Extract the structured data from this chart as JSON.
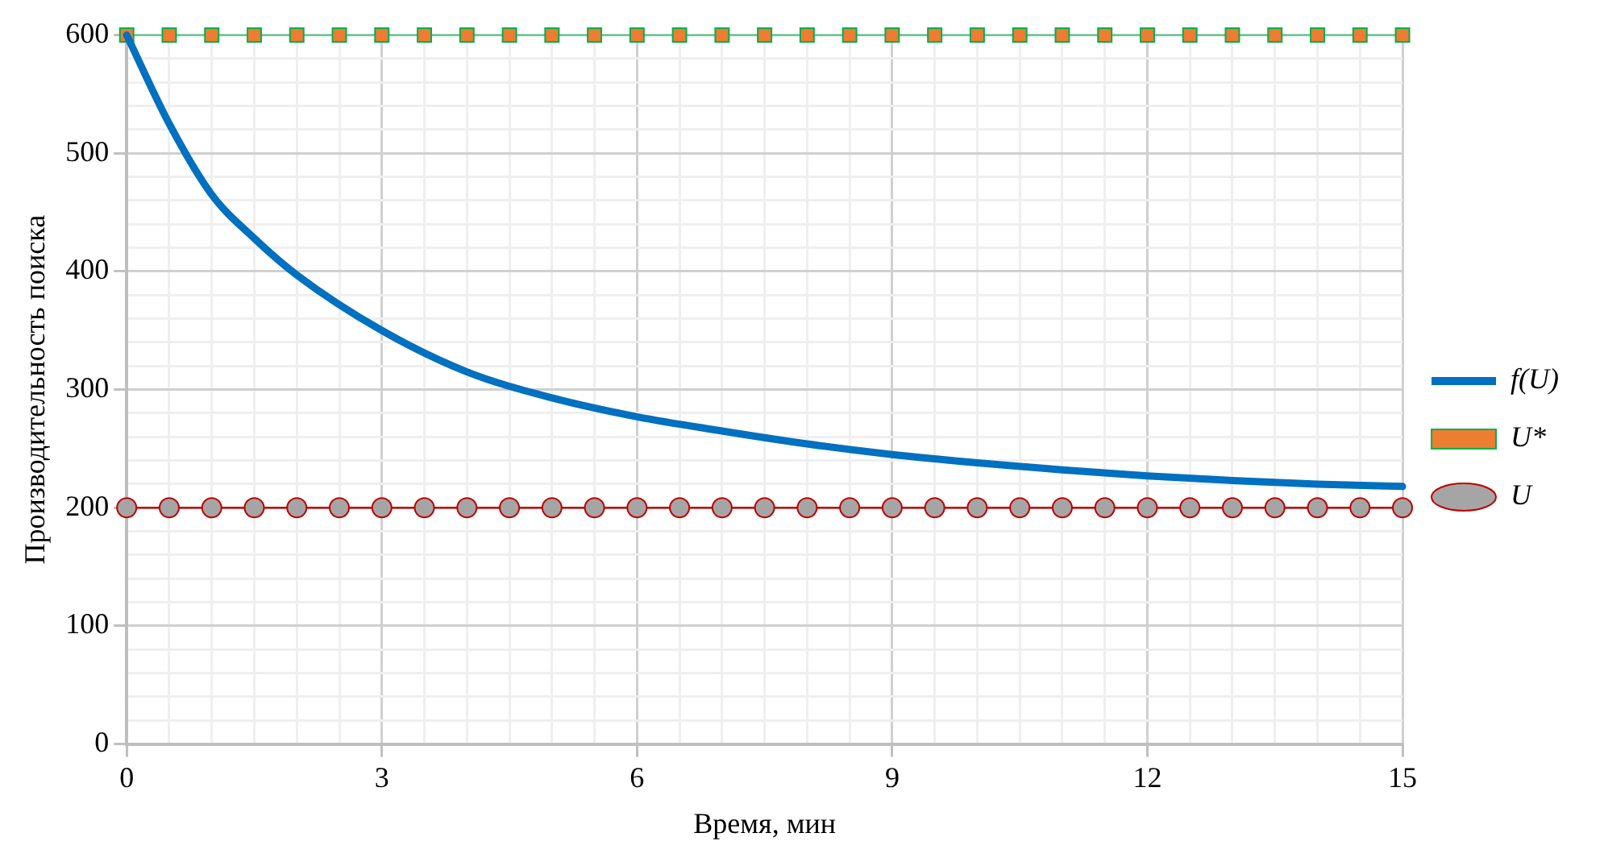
{
  "chart_data": {
    "type": "line",
    "xlabel": "Время, мин",
    "ylabel": "Производительность поиска",
    "xlim": [
      0,
      15
    ],
    "ylim": [
      0,
      600
    ],
    "xticks": [
      0,
      {
        "value": 0.5,
        "label": null
      },
      {
        "value": 1,
        "label": null
      },
      {
        "value": 1.5,
        "label": null
      },
      {
        "value": 2,
        "label": null
      },
      {
        "value": 2.5,
        "label": null
      },
      3,
      {
        "value": 3.5,
        "label": null
      },
      {
        "value": 4,
        "label": null
      },
      {
        "value": 4.5,
        "label": null
      },
      {
        "value": 5,
        "label": null
      },
      {
        "value": 5.5,
        "label": null
      },
      6,
      {
        "value": 6.5,
        "label": null
      },
      {
        "value": 7,
        "label": null
      },
      {
        "value": 7.5,
        "label": null
      },
      {
        "value": 8,
        "label": null
      },
      {
        "value": 8.5,
        "label": null
      },
      9,
      {
        "value": 9.5,
        "label": null
      },
      {
        "value": 10,
        "label": null
      },
      {
        "value": 10.5,
        "label": null
      },
      {
        "value": 11,
        "label": null
      },
      {
        "value": 11.5,
        "label": null
      },
      12,
      {
        "value": 12.5,
        "label": null
      },
      {
        "value": 13,
        "label": null
      },
      {
        "value": 13.5,
        "label": null
      },
      {
        "value": 14,
        "label": null
      },
      {
        "value": 14.5,
        "label": null
      },
      15
    ],
    "yticks": [
      0,
      {
        "value": 20,
        "label": null
      },
      {
        "value": 40,
        "label": null
      },
      {
        "value": 60,
        "label": null
      },
      {
        "value": 80,
        "label": null
      },
      100,
      {
        "value": 120,
        "label": null
      },
      {
        "value": 140,
        "label": null
      },
      {
        "value": 160,
        "label": null
      },
      {
        "value": 180,
        "label": null
      },
      200,
      {
        "value": 220,
        "label": null
      },
      {
        "value": 240,
        "label": null
      },
      {
        "value": 260,
        "label": null
      },
      {
        "value": 280,
        "label": null
      },
      300,
      {
        "value": 320,
        "label": null
      },
      {
        "value": 340,
        "label": null
      },
      {
        "value": 360,
        "label": null
      },
      {
        "value": 380,
        "label": null
      },
      400,
      {
        "value": 420,
        "label": null
      },
      {
        "value": 440,
        "label": null
      },
      {
        "value": 460,
        "label": null
      },
      {
        "value": 480,
        "label": null
      },
      500,
      {
        "value": 520,
        "label": null
      },
      {
        "value": 540,
        "label": null
      },
      {
        "value": 560,
        "label": null
      },
      {
        "value": 580,
        "label": null
      },
      600
    ],
    "grid": true,
    "legend": "right",
    "line_style": "solid",
    "series": [
      {
        "name": "f(U)",
        "color": "#0070c0",
        "marker": "none",
        "x": [
          0,
          0.5,
          1,
          1.5,
          2,
          3,
          4,
          5,
          6,
          7,
          8,
          9,
          10,
          11,
          12,
          13,
          14,
          15
        ],
        "values": [
          600,
          525,
          465,
          428,
          397,
          350,
          315,
          293,
          277,
          265,
          254,
          245,
          238,
          232,
          227,
          223,
          220,
          218
        ]
      },
      {
        "name": "U*",
        "color": "#ed7d31",
        "marker": "square",
        "x": [
          0,
          0.5,
          1,
          1.5,
          2,
          2.5,
          3,
          3.5,
          4,
          4.5,
          5,
          5.5,
          6,
          6.5,
          7,
          7.5,
          8,
          8.5,
          9,
          9.5,
          10,
          10.5,
          11,
          11.5,
          12,
          12.5,
          13,
          13.5,
          14,
          14.5,
          15
        ],
        "values": [
          600,
          600,
          600,
          600,
          600,
          600,
          600,
          600,
          600,
          600,
          600,
          600,
          600,
          600,
          600,
          600,
          600,
          600,
          600,
          600,
          600,
          600,
          600,
          600,
          600,
          600,
          600,
          600,
          600,
          600,
          600
        ]
      },
      {
        "name": "U",
        "color": "#a5a5a5",
        "marker": "circle",
        "x": [
          0,
          0.5,
          1,
          1.5,
          2,
          2.5,
          3,
          3.5,
          4,
          4.5,
          5,
          5.5,
          6,
          6.5,
          7,
          7.5,
          8,
          8.5,
          9,
          9.5,
          10,
          10.5,
          11,
          11.5,
          12,
          12.5,
          13,
          13.5,
          14,
          14.5,
          15
        ],
        "values": [
          200,
          200,
          200,
          200,
          200,
          200,
          200,
          200,
          200,
          200,
          200,
          200,
          200,
          200,
          200,
          200,
          200,
          200,
          200,
          200,
          200,
          200,
          200,
          200,
          200,
          200,
          200,
          200,
          200,
          200,
          200
        ]
      }
    ]
  }
}
